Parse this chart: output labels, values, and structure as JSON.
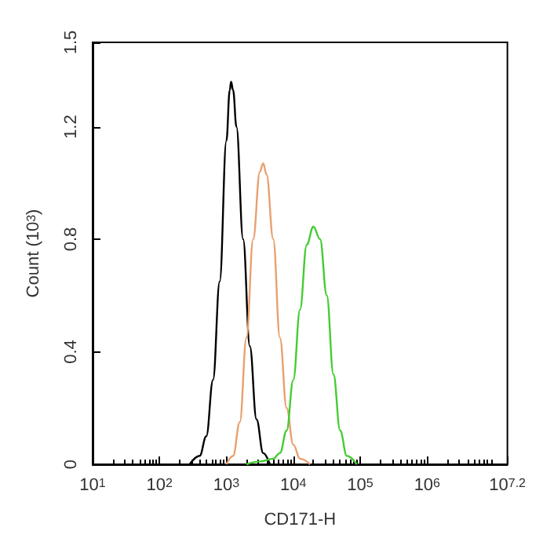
{
  "chart_data": {
    "type": "line",
    "xlabel": "CD171-H",
    "ylabel": "Count (10$^{3}$)",
    "log": "x",
    "xlim": [
      10,
      15848932
    ],
    "ylim": [
      0,
      1.5
    ],
    "xticks": [
      {
        "value": 10,
        "label": "10$^{1}$"
      },
      {
        "value": 100,
        "label": "10$^{2}$"
      },
      {
        "value": 1000,
        "label": "10$^{3}$"
      },
      {
        "value": 10000,
        "label": "10$^{4}$"
      },
      {
        "value": 100000,
        "label": "10$^{5}$"
      },
      {
        "value": 1000000,
        "label": "10$^{6}$"
      },
      {
        "value": 15848932,
        "label": "10$^{7.2}$"
      }
    ],
    "yticks": [
      0,
      0.4,
      0.8,
      1.2,
      1.5
    ],
    "grid": false,
    "marker": "none",
    "line_style": "solid",
    "series": [
      {
        "color": "#000000",
        "x": [
          282,
          398,
          501,
          631,
          794,
          1000,
          1122,
          1175,
          1259,
          1413,
          1778,
          2239,
          2818,
          3548,
          4467
        ],
        "values": [
          0,
          0.03,
          0.1,
          0.3,
          0.65,
          1.15,
          1.33,
          1.36,
          1.33,
          1.2,
          0.8,
          0.42,
          0.16,
          0.04,
          0
        ]
      },
      {
        "color": "#e8a070",
        "x": [
          1000,
          1259,
          1585,
          1995,
          2512,
          3162,
          3548,
          3981,
          5012,
          6310,
          7943,
          10000,
          12589,
          17783
        ],
        "values": [
          0,
          0.03,
          0.15,
          0.45,
          0.8,
          1.04,
          1.07,
          1.03,
          0.8,
          0.45,
          0.2,
          0.07,
          0.02,
          0
        ]
      },
      {
        "color": "#44cc33",
        "x": [
          1995,
          3162,
          5012,
          6310,
          7943,
          10000,
          12589,
          15849,
          19953,
          25119,
          31623,
          39811,
          50119,
          63096,
          89125
        ],
        "values": [
          0,
          0.01,
          0.02,
          0.04,
          0.12,
          0.3,
          0.55,
          0.78,
          0.845,
          0.8,
          0.6,
          0.32,
          0.12,
          0.03,
          0
        ]
      }
    ]
  }
}
